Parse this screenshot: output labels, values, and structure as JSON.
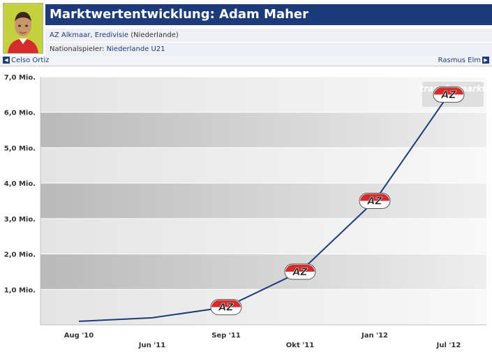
{
  "header": {
    "title": "Marktwertentwicklung: Adam Maher",
    "club_line_link": "AZ Alkmaar",
    "club_line_sep": ", ",
    "club_league": "Eredivisie",
    "club_country": " (Niederlande)",
    "national_label": "Nationalspieler: ",
    "national_link": "Niederlande U21"
  },
  "nav": {
    "prev_player": "Celso Ortiz",
    "next_player": "Rasmus Elm"
  },
  "watermark_logo": "transfermarkt",
  "chart_data": {
    "type": "line",
    "title": "",
    "xlabel": "",
    "ylabel": "",
    "ylim": [
      0,
      7
    ],
    "y_ticks": [
      "",
      "1,0 Mio.",
      "2,0 Mio.",
      "3,0 Mio.",
      "4,0 Mio.",
      "5,0 Mio.",
      "6,0 Mio.",
      "7,0 Mio."
    ],
    "x": [
      "Aug '10",
      "Jun '11",
      "Sep '11",
      "Okt '11",
      "Jan '12",
      "Jul '12"
    ],
    "values": [
      0.1,
      0.2,
      0.5,
      1.5,
      3.5,
      6.5
    ],
    "marker_club": "AZ",
    "markers_at": [
      2,
      3,
      4,
      5
    ],
    "line_color": "#1d3a7a",
    "grid": true
  }
}
